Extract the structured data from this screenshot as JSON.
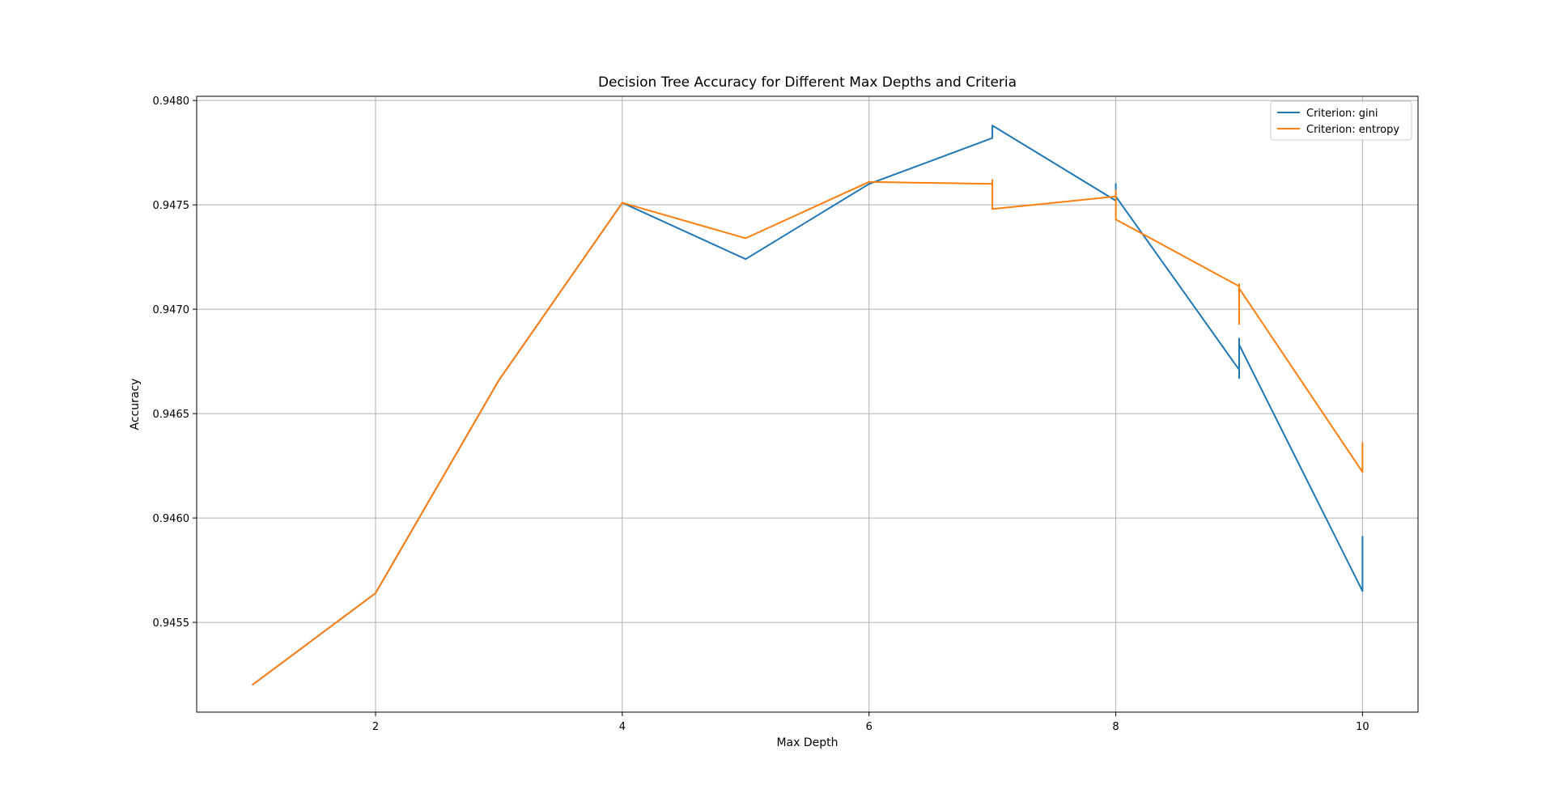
{
  "chart_data": {
    "type": "line",
    "title": "Decision Tree Accuracy for Different Max Depths and Criteria",
    "xlabel": "Max Depth",
    "ylabel": "Accuracy",
    "xlim": [
      0.55,
      10.45
    ],
    "ylim": [
      0.94507,
      0.94802
    ],
    "grid": true,
    "legend_position": "top-right",
    "x_ticks": [
      2,
      4,
      6,
      8,
      10
    ],
    "x_tick_labels": [
      "2",
      "4",
      "6",
      "8",
      "10"
    ],
    "y_ticks": [
      0.9455,
      0.946,
      0.9465,
      0.947,
      0.9475,
      0.948
    ],
    "y_tick_labels": [
      "0.9455",
      "0.9460",
      "0.9465",
      "0.9470",
      "0.9475",
      "0.9480"
    ],
    "series": [
      {
        "name": "Criterion: gini",
        "label": "Criterion: gini",
        "color": "#1f77b4",
        "x": [
          1,
          2,
          3,
          4,
          5,
          6,
          7,
          7,
          7,
          8,
          8,
          8,
          8,
          9,
          9,
          9,
          9,
          10,
          10,
          10,
          10,
          10
        ],
        "y": [
          0.9452,
          0.94564,
          0.94666,
          0.94751,
          0.94724,
          0.9476,
          0.94782,
          0.94783,
          0.94788,
          0.94752,
          0.9476,
          0.94756,
          0.94754,
          0.94671,
          0.94667,
          0.94686,
          0.94683,
          0.94565,
          0.94591,
          0.9457,
          0.9458,
          0.94572
        ]
      },
      {
        "name": "Criterion: entropy",
        "label": "Criterion: entropy",
        "color": "#ff7f0e",
        "x": [
          1,
          2,
          3,
          4,
          5,
          6,
          7,
          7,
          7,
          8,
          8,
          8,
          8,
          9,
          9,
          9,
          9,
          10,
          10,
          10,
          10,
          10
        ],
        "y": [
          0.9452,
          0.94564,
          0.94666,
          0.94751,
          0.94734,
          0.94761,
          0.9476,
          0.94762,
          0.94748,
          0.94754,
          0.94757,
          0.9475,
          0.94743,
          0.94711,
          0.94712,
          0.94693,
          0.9471,
          0.94622,
          0.94636,
          0.94625,
          0.9463,
          0.94624
        ]
      }
    ]
  }
}
